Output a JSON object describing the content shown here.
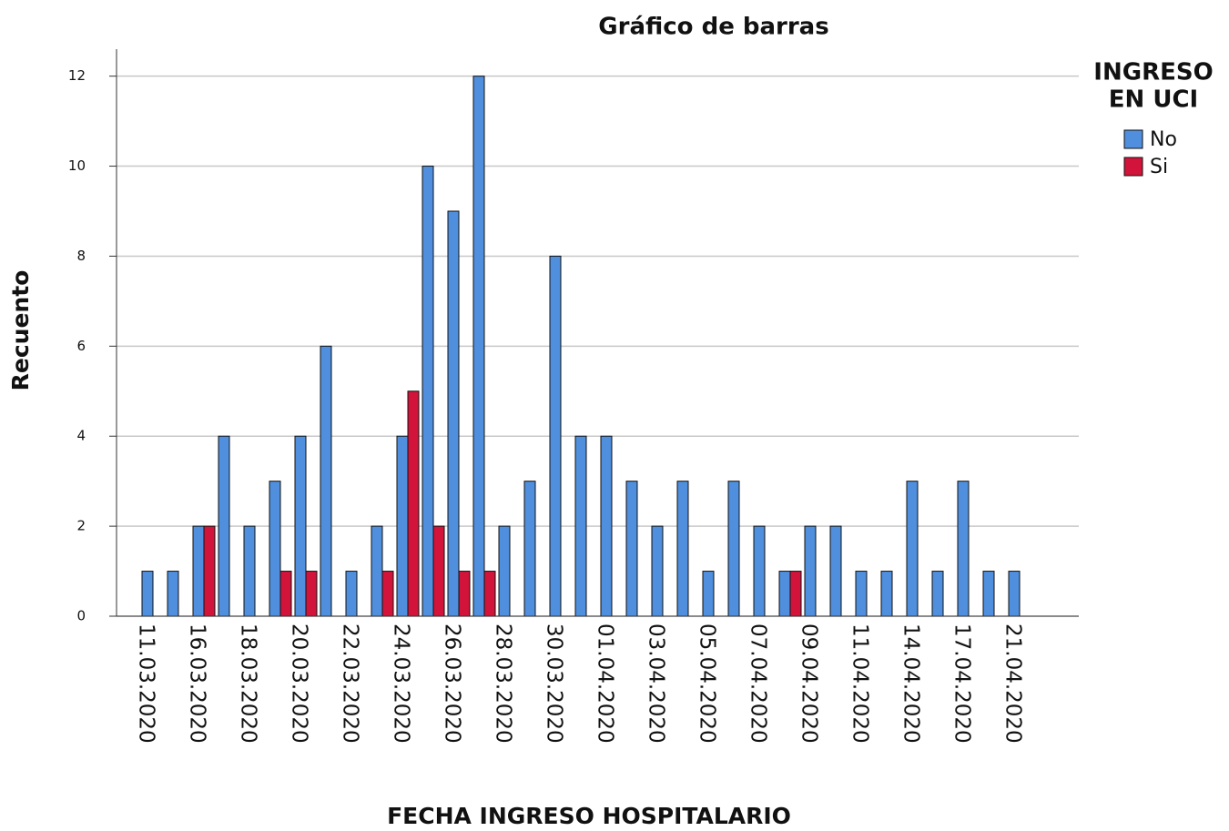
{
  "chart_data": {
    "type": "bar",
    "title": "Gráfico de barras",
    "x_label": "FECHA INGRESO HOSPITALARIO",
    "y_label": "Recuento",
    "legend_title": [
      "INGRESO",
      "EN UCI"
    ],
    "categories": [
      "11.03.2020",
      null,
      "16.03.2020",
      null,
      "18.03.2020",
      null,
      "20.03.2020",
      null,
      "22.03.2020",
      null,
      "24.03.2020",
      null,
      "26.03.2020",
      null,
      "28.03.2020",
      null,
      "30.03.2020",
      null,
      "01.04.2020",
      null,
      "03.04.2020",
      null,
      "05.04.2020",
      null,
      "07.04.2020",
      null,
      "09.04.2020",
      null,
      "11.04.2020",
      null,
      "14.04.2020",
      null,
      "17.04.2020",
      null,
      "21.04.2020"
    ],
    "series": [
      {
        "name": "No",
        "color": "#4f8fdd",
        "values": [
          1,
          1,
          2,
          4,
          2,
          3,
          4,
          6,
          1,
          2,
          4,
          10,
          9,
          12,
          2,
          3,
          8,
          4,
          4,
          3,
          2,
          3,
          1,
          3,
          2,
          1,
          2,
          2,
          1,
          1,
          3,
          1,
          3,
          1,
          1
        ]
      },
      {
        "name": "Si",
        "color": "#d2143a",
        "values": [
          0,
          0,
          2,
          0,
          0,
          1,
          1,
          0,
          0,
          1,
          5,
          2,
          1,
          1,
          0,
          0,
          0,
          0,
          0,
          0,
          0,
          0,
          0,
          0,
          0,
          1,
          0,
          0,
          0,
          0,
          0,
          0,
          0,
          0,
          0
        ]
      }
    ],
    "ylim": [
      0,
      12.6
    ],
    "yticks": [
      0,
      2,
      4,
      6,
      8,
      10,
      12
    ],
    "grid": true
  }
}
